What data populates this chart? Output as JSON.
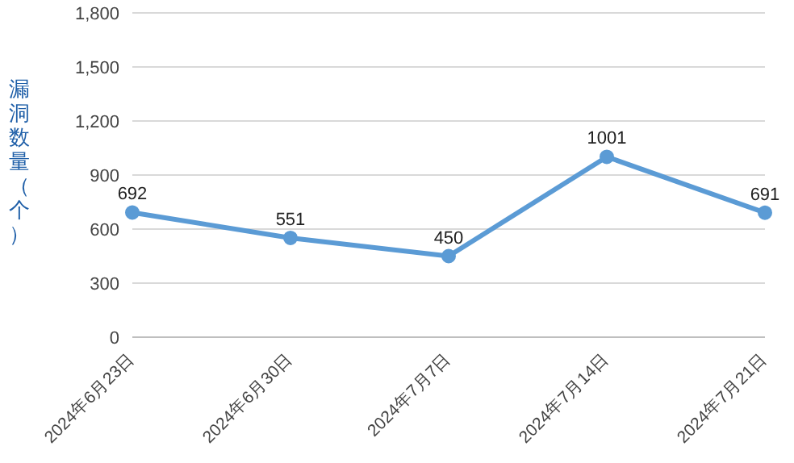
{
  "chart_data": {
    "type": "line",
    "ylabel": "漏洞数量（个）",
    "categories": [
      "2024年6月23日",
      "2024年6月30日",
      "2024年7月7日",
      "2024年7月14日",
      "2024年7月21日"
    ],
    "series": [
      {
        "color": "#5b9bd5",
        "values": [
          692,
          551,
          450,
          1001,
          691
        ]
      }
    ],
    "ylim": [
      0,
      1800
    ],
    "yticks": [
      {
        "value": 0,
        "label": "0"
      },
      {
        "value": 300,
        "label": "300"
      },
      {
        "value": 600,
        "label": "600"
      },
      {
        "value": 900,
        "label": "900"
      },
      {
        "value": 1200,
        "label": "1,200"
      },
      {
        "value": 1500,
        "label": "1,500"
      },
      {
        "value": 1800,
        "label": "1,800"
      }
    ],
    "grid": "y",
    "marker": "circle",
    "data_labels": true,
    "legend": false
  }
}
